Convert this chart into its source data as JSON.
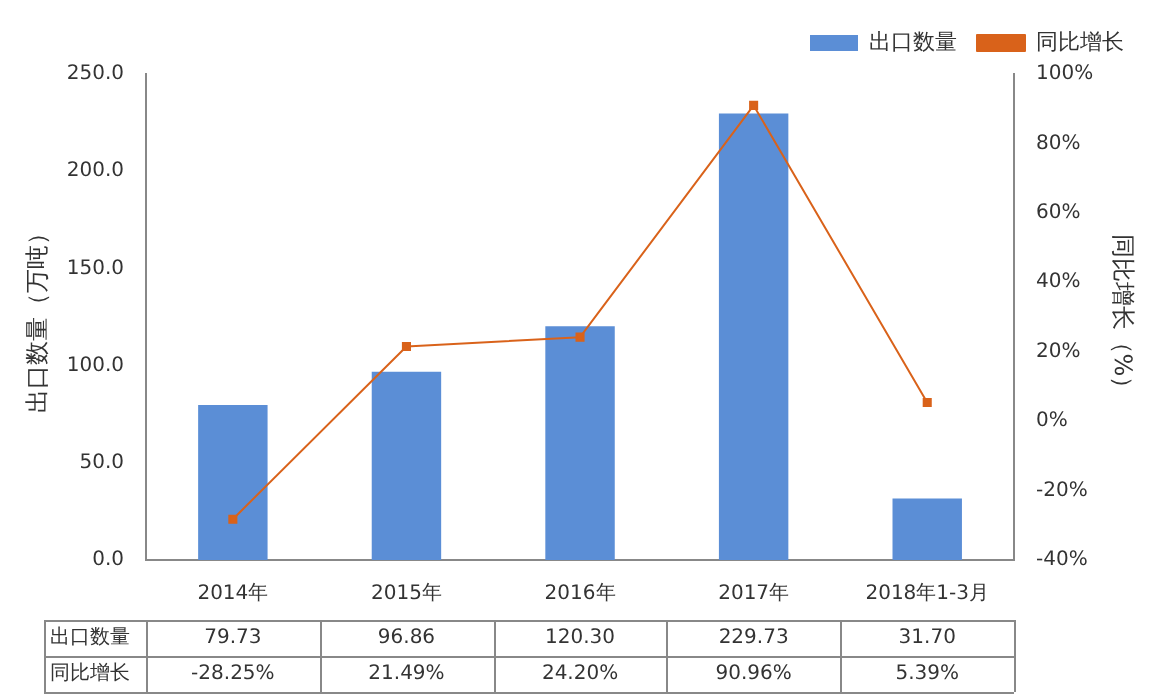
{
  "chart_data": {
    "type": "bar",
    "categories": [
      "2014年",
      "2015年",
      "2016年",
      "2017年",
      "2018年1-3月"
    ],
    "ylabel": "出口数量（万吨）",
    "y2label": "同比增长（%）",
    "ylim": [
      0,
      250
    ],
    "yticks": [
      {
        "value": 0,
        "label": "0.0"
      },
      {
        "value": 50,
        "label": "50.0"
      },
      {
        "value": 100,
        "label": "100.0"
      },
      {
        "value": 150,
        "label": "150.0"
      },
      {
        "value": 200,
        "label": "200.0"
      },
      {
        "value": 250,
        "label": "250.0"
      }
    ],
    "y2lim": [
      -40,
      100
    ],
    "y2ticks": [
      {
        "value": -40,
        "label": "-40%"
      },
      {
        "value": -20,
        "label": "-20%"
      },
      {
        "value": 0,
        "label": "0%"
      },
      {
        "value": 20,
        "label": "20%"
      },
      {
        "value": 40,
        "label": "40%"
      },
      {
        "value": 60,
        "label": "60%"
      },
      {
        "value": 80,
        "label": "80%"
      },
      {
        "value": 100,
        "label": "100%"
      }
    ],
    "series": [
      {
        "name": "出口数量",
        "color": "#5b8ed6",
        "values": [
          79.73,
          96.86,
          120.3,
          229.73,
          31.7
        ],
        "value_labels": [
          "79.73",
          "96.86",
          "120.30",
          "229.73",
          "31.70"
        ]
      },
      {
        "name": "同比增长",
        "type": "line",
        "axis": "y2",
        "color": "#d9621a",
        "values": [
          -28.25,
          21.49,
          24.2,
          90.96,
          5.39
        ],
        "value_labels": [
          "-28.25%",
          "21.49%",
          "24.20%",
          "90.96%",
          "5.39%"
        ]
      }
    ],
    "grid": false,
    "legend": "top right",
    "marker": "square",
    "line_style": "solid"
  }
}
